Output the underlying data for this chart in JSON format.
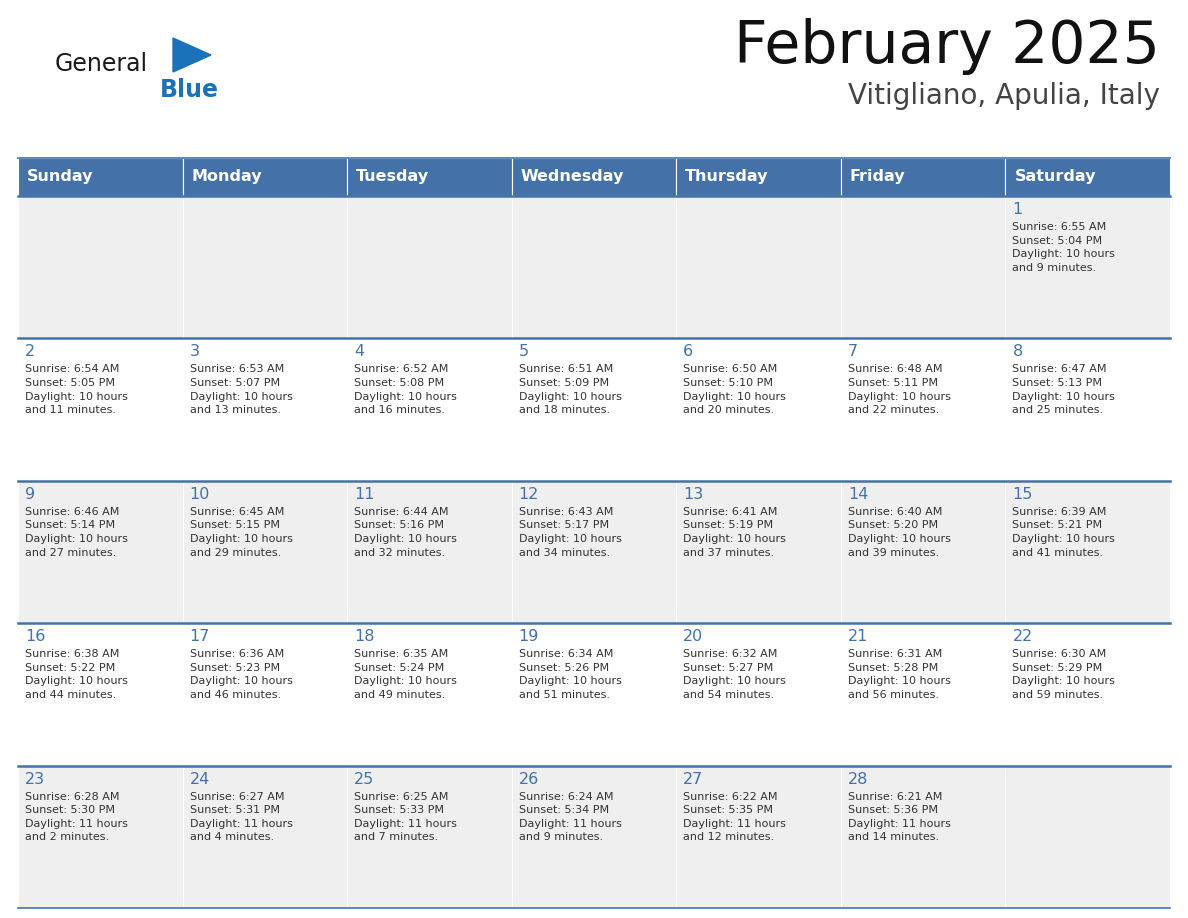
{
  "title": "February 2025",
  "subtitle": "Vitigliano, Apulia, Italy",
  "header_bg": "#4472A8",
  "header_text": "#FFFFFF",
  "row_bg_odd": "#EFEFEF",
  "row_bg_even": "#FFFFFF",
  "separator_color": "#4472A8",
  "day_names": [
    "Sunday",
    "Monday",
    "Tuesday",
    "Wednesday",
    "Thursday",
    "Friday",
    "Saturday"
  ],
  "general_color": "#1A72BB",
  "blue_triangle_color": "#1A72BB",
  "calendar": [
    [
      null,
      null,
      null,
      null,
      null,
      null,
      1
    ],
    [
      2,
      3,
      4,
      5,
      6,
      7,
      8
    ],
    [
      9,
      10,
      11,
      12,
      13,
      14,
      15
    ],
    [
      16,
      17,
      18,
      19,
      20,
      21,
      22
    ],
    [
      23,
      24,
      25,
      26,
      27,
      28,
      null
    ]
  ],
  "cell_data": {
    "1": {
      "sunrise": "6:55 AM",
      "sunset": "5:04 PM",
      "daylight": "10 hours\nand 9 minutes."
    },
    "2": {
      "sunrise": "6:54 AM",
      "sunset": "5:05 PM",
      "daylight": "10 hours\nand 11 minutes."
    },
    "3": {
      "sunrise": "6:53 AM",
      "sunset": "5:07 PM",
      "daylight": "10 hours\nand 13 minutes."
    },
    "4": {
      "sunrise": "6:52 AM",
      "sunset": "5:08 PM",
      "daylight": "10 hours\nand 16 minutes."
    },
    "5": {
      "sunrise": "6:51 AM",
      "sunset": "5:09 PM",
      "daylight": "10 hours\nand 18 minutes."
    },
    "6": {
      "sunrise": "6:50 AM",
      "sunset": "5:10 PM",
      "daylight": "10 hours\nand 20 minutes."
    },
    "7": {
      "sunrise": "6:48 AM",
      "sunset": "5:11 PM",
      "daylight": "10 hours\nand 22 minutes."
    },
    "8": {
      "sunrise": "6:47 AM",
      "sunset": "5:13 PM",
      "daylight": "10 hours\nand 25 minutes."
    },
    "9": {
      "sunrise": "6:46 AM",
      "sunset": "5:14 PM",
      "daylight": "10 hours\nand 27 minutes."
    },
    "10": {
      "sunrise": "6:45 AM",
      "sunset": "5:15 PM",
      "daylight": "10 hours\nand 29 minutes."
    },
    "11": {
      "sunrise": "6:44 AM",
      "sunset": "5:16 PM",
      "daylight": "10 hours\nand 32 minutes."
    },
    "12": {
      "sunrise": "6:43 AM",
      "sunset": "5:17 PM",
      "daylight": "10 hours\nand 34 minutes."
    },
    "13": {
      "sunrise": "6:41 AM",
      "sunset": "5:19 PM",
      "daylight": "10 hours\nand 37 minutes."
    },
    "14": {
      "sunrise": "6:40 AM",
      "sunset": "5:20 PM",
      "daylight": "10 hours\nand 39 minutes."
    },
    "15": {
      "sunrise": "6:39 AM",
      "sunset": "5:21 PM",
      "daylight": "10 hours\nand 41 minutes."
    },
    "16": {
      "sunrise": "6:38 AM",
      "sunset": "5:22 PM",
      "daylight": "10 hours\nand 44 minutes."
    },
    "17": {
      "sunrise": "6:36 AM",
      "sunset": "5:23 PM",
      "daylight": "10 hours\nand 46 minutes."
    },
    "18": {
      "sunrise": "6:35 AM",
      "sunset": "5:24 PM",
      "daylight": "10 hours\nand 49 minutes."
    },
    "19": {
      "sunrise": "6:34 AM",
      "sunset": "5:26 PM",
      "daylight": "10 hours\nand 51 minutes."
    },
    "20": {
      "sunrise": "6:32 AM",
      "sunset": "5:27 PM",
      "daylight": "10 hours\nand 54 minutes."
    },
    "21": {
      "sunrise": "6:31 AM",
      "sunset": "5:28 PM",
      "daylight": "10 hours\nand 56 minutes."
    },
    "22": {
      "sunrise": "6:30 AM",
      "sunset": "5:29 PM",
      "daylight": "10 hours\nand 59 minutes."
    },
    "23": {
      "sunrise": "6:28 AM",
      "sunset": "5:30 PM",
      "daylight": "11 hours\nand 2 minutes."
    },
    "24": {
      "sunrise": "6:27 AM",
      "sunset": "5:31 PM",
      "daylight": "11 hours\nand 4 minutes."
    },
    "25": {
      "sunrise": "6:25 AM",
      "sunset": "5:33 PM",
      "daylight": "11 hours\nand 7 minutes."
    },
    "26": {
      "sunrise": "6:24 AM",
      "sunset": "5:34 PM",
      "daylight": "11 hours\nand 9 minutes."
    },
    "27": {
      "sunrise": "6:22 AM",
      "sunset": "5:35 PM",
      "daylight": "11 hours\nand 12 minutes."
    },
    "28": {
      "sunrise": "6:21 AM",
      "sunset": "5:36 PM",
      "daylight": "11 hours\nand 14 minutes."
    }
  },
  "fig_width": 11.88,
  "fig_height": 9.18,
  "dpi": 100
}
